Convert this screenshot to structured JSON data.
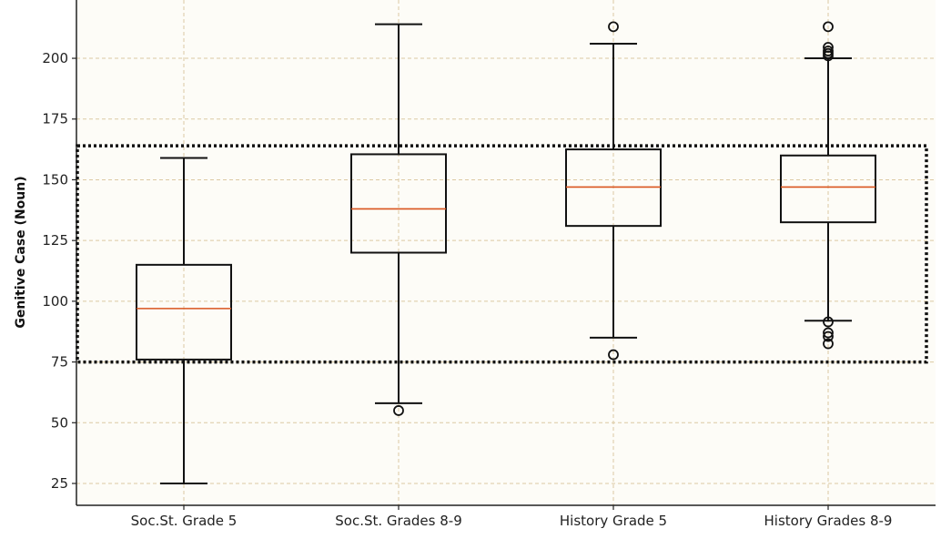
{
  "chart_data": {
    "type": "boxplot",
    "title": "",
    "xlabel": "",
    "ylabel": "Genitive Case (Noun)",
    "ylim": [
      16,
      224
    ],
    "yticks": [
      25,
      50,
      75,
      100,
      125,
      150,
      175,
      200
    ],
    "grid": true,
    "categories": [
      "Soc.St. Grade 5",
      "Soc.St. Grades 8-9",
      "History Grade 5",
      "History Grades 8-9"
    ],
    "boxes": [
      {
        "name": "Soc.St. Grade 5",
        "whisker_low": 25,
        "q1": 76,
        "median": 97,
        "q3": 115,
        "whisker_high": 159,
        "outliers": []
      },
      {
        "name": "Soc.St. Grades 8-9",
        "whisker_low": 58,
        "q1": 120,
        "median": 138,
        "q3": 160.5,
        "whisker_high": 214,
        "outliers": [
          55
        ]
      },
      {
        "name": "History Grade 5",
        "whisker_low": 85,
        "q1": 131,
        "median": 147,
        "q3": 162.5,
        "whisker_high": 206,
        "outliers": [
          78,
          213
        ]
      },
      {
        "name": "History Grades 8-9",
        "whisker_low": 92,
        "q1": 132.5,
        "median": 147,
        "q3": 160,
        "whisker_high": 200,
        "outliers": [
          82.5,
          85.5,
          87,
          91.5,
          201,
          202,
          203,
          204.5,
          213
        ]
      }
    ],
    "highlight_region": {
      "y_from": 75,
      "y_to": 164,
      "style": "dotted"
    },
    "colors": {
      "background": "#fdfcf7",
      "box": "#111111",
      "median": "#d9541e",
      "grid": "#dcc9a3",
      "highlight": "#111111"
    }
  }
}
